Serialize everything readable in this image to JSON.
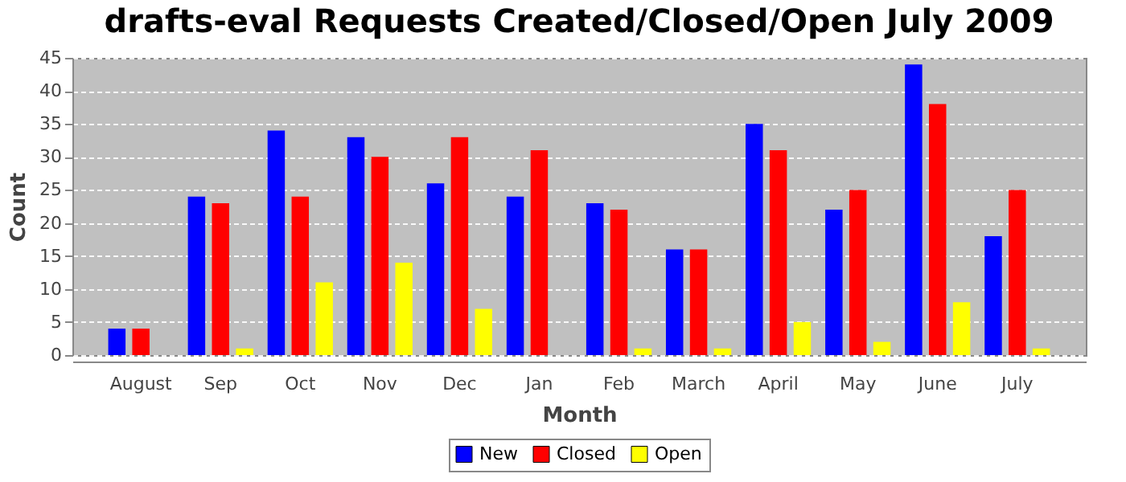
{
  "chart_data": {
    "type": "bar",
    "title": "drafts-eval Requests Created/Closed/Open July 2009",
    "xlabel": "Month",
    "ylabel": "Count",
    "categories": [
      "August",
      "Sep",
      "Oct",
      "Nov",
      "Dec",
      "Jan",
      "Feb",
      "March",
      "April",
      "May",
      "June",
      "July"
    ],
    "series": [
      {
        "name": "New",
        "color": "#0000ff",
        "values": [
          4,
          24,
          34,
          33,
          26,
          24,
          23,
          16,
          35,
          22,
          44,
          18
        ]
      },
      {
        "name": "Closed",
        "color": "#ff0000",
        "values": [
          4,
          23,
          24,
          30,
          33,
          31,
          22,
          16,
          31,
          25,
          38,
          25
        ]
      },
      {
        "name": "Open",
        "color": "#ffff00",
        "values": [
          0,
          1,
          11,
          14,
          7,
          0,
          1,
          1,
          5,
          2,
          8,
          1
        ]
      }
    ],
    "ylim": [
      0,
      45
    ],
    "yticks": [
      0,
      5,
      10,
      15,
      20,
      25,
      30,
      35,
      40,
      45
    ],
    "grid": "y",
    "legend": "bottom"
  }
}
